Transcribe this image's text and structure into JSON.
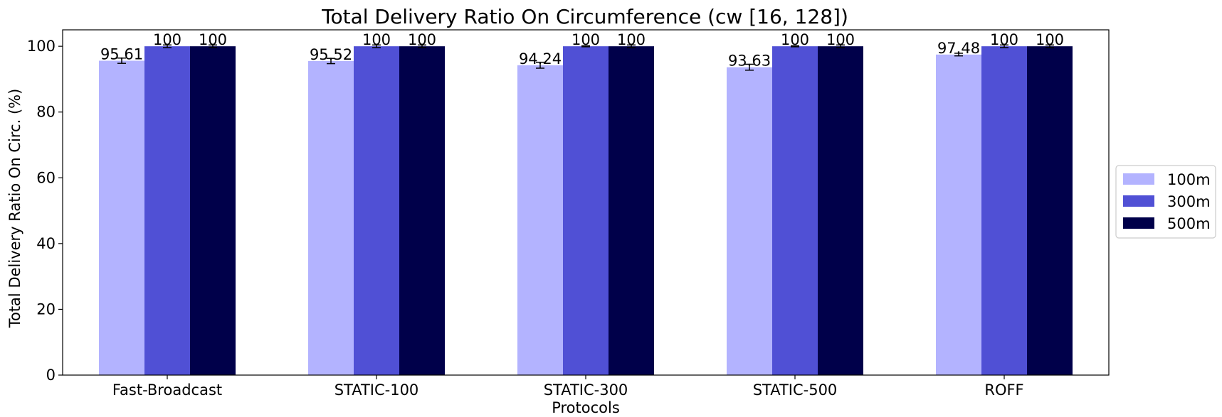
{
  "chart_data": {
    "type": "bar",
    "title": "Total Delivery Ratio On Circumference (cw [16, 128])",
    "xlabel": "Protocols",
    "ylabel": "Total Delivery Ratio On Circ. (%)",
    "ylim": [
      0,
      105
    ],
    "yticks": [
      0,
      20,
      40,
      60,
      80,
      100
    ],
    "ytick_labels": [
      "0",
      "20",
      "40",
      "60",
      "80",
      "100"
    ],
    "grid": false,
    "legend_position": "right",
    "categories": [
      "Fast-Broadcast",
      "STATIC-100",
      "STATIC-300",
      "STATIC-500",
      "ROFF"
    ],
    "series": [
      {
        "name": "100m",
        "color": "#b3b3ff",
        "values": [
          95.61,
          95.52,
          94.24,
          93.63,
          97.48
        ],
        "labels": [
          "95.61",
          "95.52",
          "94.24",
          "93.63",
          "97.48"
        ],
        "errors": [
          0.8,
          0.8,
          0.9,
          0.9,
          0.4
        ]
      },
      {
        "name": "300m",
        "color": "#5050d5",
        "values": [
          100,
          100,
          100,
          100,
          100
        ],
        "labels": [
          "100",
          "100",
          "100",
          "100",
          "100"
        ],
        "errors": [
          0.4,
          0.4,
          0.15,
          0.15,
          0.4
        ]
      },
      {
        "name": "500m",
        "color": "#00004a",
        "values": [
          100,
          100,
          100,
          100,
          100
        ],
        "labels": [
          "100",
          "100",
          "100",
          "100",
          "100"
        ],
        "errors": [
          0.4,
          0.4,
          0.4,
          0.4,
          0.4
        ]
      }
    ]
  }
}
